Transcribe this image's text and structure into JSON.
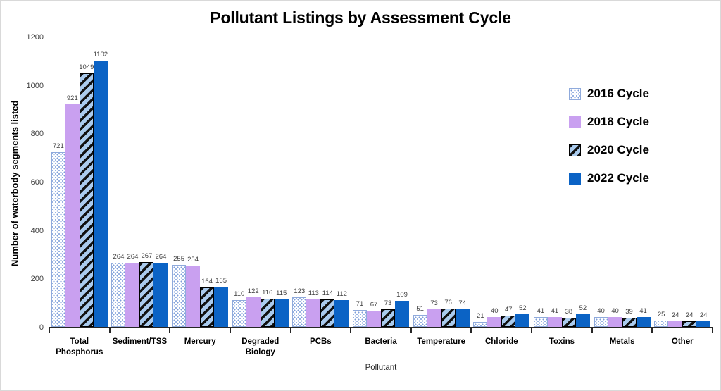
{
  "chart_data": {
    "type": "bar",
    "title": "Pollutant Listings by Assessment Cycle",
    "xlabel": "Pollutant",
    "ylabel": "Number of waterbody segments listed",
    "ylim": [
      0,
      1200
    ],
    "yticks": [
      0,
      200,
      400,
      600,
      800,
      1000,
      1200
    ],
    "grid": false,
    "legend_position": "right",
    "categories": [
      "Total Phosphorus",
      "Sediment/TSS",
      "Mercury",
      "Degraded Biology",
      "PCBs",
      "Bacteria",
      "Temperature",
      "Chloride",
      "Toxins",
      "Metals",
      "Other"
    ],
    "series": [
      {
        "name": "2016 Cycle",
        "pattern": "dots",
        "values": [
          721,
          264,
          255,
          110,
          123,
          71,
          51,
          21,
          41,
          40,
          25
        ]
      },
      {
        "name": "2018 Cycle",
        "pattern": "solid-purple",
        "values": [
          921,
          264,
          254,
          122,
          113,
          67,
          73,
          40,
          41,
          40,
          24
        ]
      },
      {
        "name": "2020 Cycle",
        "pattern": "hatch",
        "values": [
          1049,
          267,
          164,
          116,
          114,
          73,
          76,
          47,
          38,
          39,
          24
        ]
      },
      {
        "name": "2022 Cycle",
        "pattern": "solid-blue",
        "values": [
          1102,
          264,
          165,
          115,
          112,
          109,
          74,
          52,
          52,
          41,
          24
        ]
      }
    ],
    "colors": {
      "purple": "#c9a0f0",
      "blue": "#0b63c5",
      "hatch_background": "#aacbee",
      "hatch_stripe": "#111111",
      "dot_fill": "#7d9ed9",
      "dot_border": "#8faadc",
      "value_label": "#404040",
      "axis": "#262626",
      "frame_border": "#d9d9d9"
    }
  }
}
